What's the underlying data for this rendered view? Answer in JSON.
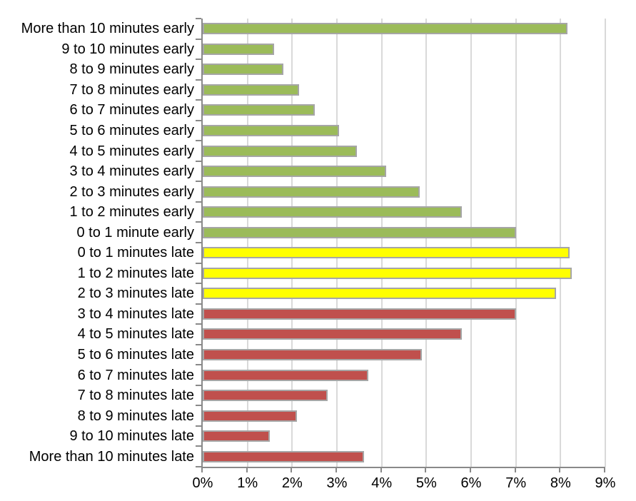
{
  "chart_data": {
    "type": "bar",
    "orientation": "horizontal",
    "title": "",
    "xlabel": "",
    "ylabel": "",
    "xlim": [
      0,
      9
    ],
    "x_ticks": [
      "0%",
      "1%",
      "2%",
      "3%",
      "4%",
      "5%",
      "6%",
      "7%",
      "8%",
      "9%"
    ],
    "grid": true,
    "legend": "none",
    "categories": [
      "More than 10 minutes early",
      "9 to 10 minutes early",
      "8 to 9 minutes early",
      "7 to 8 minutes early",
      "6 to 7 minutes early",
      "5 to 6 minutes early",
      "4 to 5 minutes early",
      "3 to 4 minutes early",
      "2 to 3 minutes early",
      "1 to 2 minutes early",
      "0 to 1 minute early",
      "0 to 1 minutes late",
      "1 to 2 minutes late",
      "2 to 3 minutes late",
      "3 to 4 minutes late",
      "4 to 5 minutes late",
      "5 to 6 minutes late",
      "6 to 7 minutes late",
      "7 to 8 minutes late",
      "8 to 9 minutes late",
      "9 to 10 minutes late",
      "More than 10 minutes late"
    ],
    "values": [
      8.15,
      1.6,
      1.8,
      2.15,
      2.5,
      3.05,
      3.45,
      4.1,
      4.85,
      5.8,
      7.0,
      8.2,
      8.25,
      7.9,
      7.0,
      5.8,
      4.9,
      3.7,
      2.8,
      2.1,
      1.5,
      3.6
    ],
    "value_unit": "%",
    "bar_groups": [
      "early",
      "early",
      "early",
      "early",
      "early",
      "early",
      "early",
      "early",
      "early",
      "early",
      "early",
      "slightly_late",
      "slightly_late",
      "slightly_late",
      "late",
      "late",
      "late",
      "late",
      "late",
      "late",
      "late",
      "late"
    ],
    "group_colors": {
      "early": "#9bbb59",
      "slightly_late": "#ffff00",
      "late": "#c0504d"
    },
    "bar_border_color": "#a6a6a6",
    "gridline_color": "#d9d9d9",
    "axis_color": "#898989",
    "text_color": "#000000"
  }
}
